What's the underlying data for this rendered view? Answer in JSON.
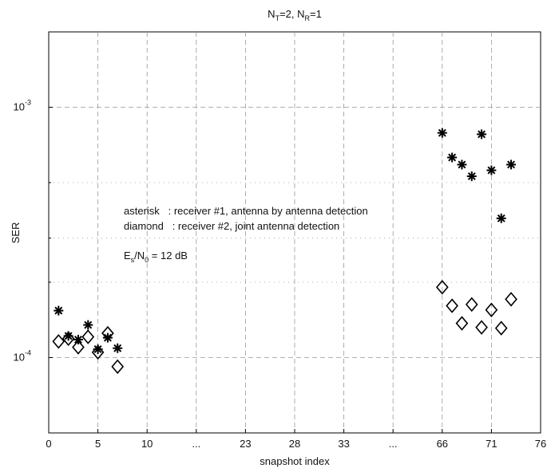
{
  "chart_data": {
    "type": "scatter",
    "title": [
      "N",
      "T",
      "=2, N",
      "R",
      "=1"
    ],
    "xlabel": "snapshot index",
    "ylabel": "SER",
    "annotations": [
      "asterisk   : receiver #1, antenna by antenna detection",
      "diamond   : receiver #2, joint antenna detection"
    ],
    "snr_note": [
      "E",
      "s",
      "/N",
      "0",
      " = 12 dB"
    ],
    "x": [
      1,
      2,
      3,
      4,
      5,
      6,
      7,
      66,
      67,
      68,
      69,
      70,
      71,
      72,
      73
    ],
    "series": [
      {
        "marker": "asterisk",
        "color": "#000000",
        "values": [
          0.000154,
          0.000122,
          0.000118,
          0.000135,
          0.000108,
          0.00012,
          0.000109,
          0.00079,
          0.00063,
          0.00059,
          0.00053,
          0.00078,
          0.00056,
          0.00036,
          0.00059
        ]
      },
      {
        "marker": "diamond",
        "color": "#000000",
        "values": [
          0.000116,
          0.000119,
          0.00011,
          0.000121,
          0.000105,
          0.000125,
          9.2e-05,
          0.000191,
          0.000161,
          0.000137,
          0.000163,
          0.000132,
          0.000155,
          0.000131,
          0.000171
        ]
      }
    ],
    "xticks": [
      0,
      5,
      10,
      {
        "value": null,
        "label": "..."
      },
      23,
      28,
      33,
      {
        "value": null,
        "label": "..."
      },
      66,
      71,
      76
    ],
    "ylim": [
      5e-05,
      0.002
    ],
    "yscale": "log",
    "yticks": [
      {
        "value": 0.0001,
        "label": [
          "10",
          "-4"
        ]
      },
      {
        "value": 0.001,
        "label": [
          "10",
          "-3"
        ]
      }
    ],
    "yminorticks": [
      0.0002,
      0.0003,
      0.0005
    ],
    "grid": true
  }
}
